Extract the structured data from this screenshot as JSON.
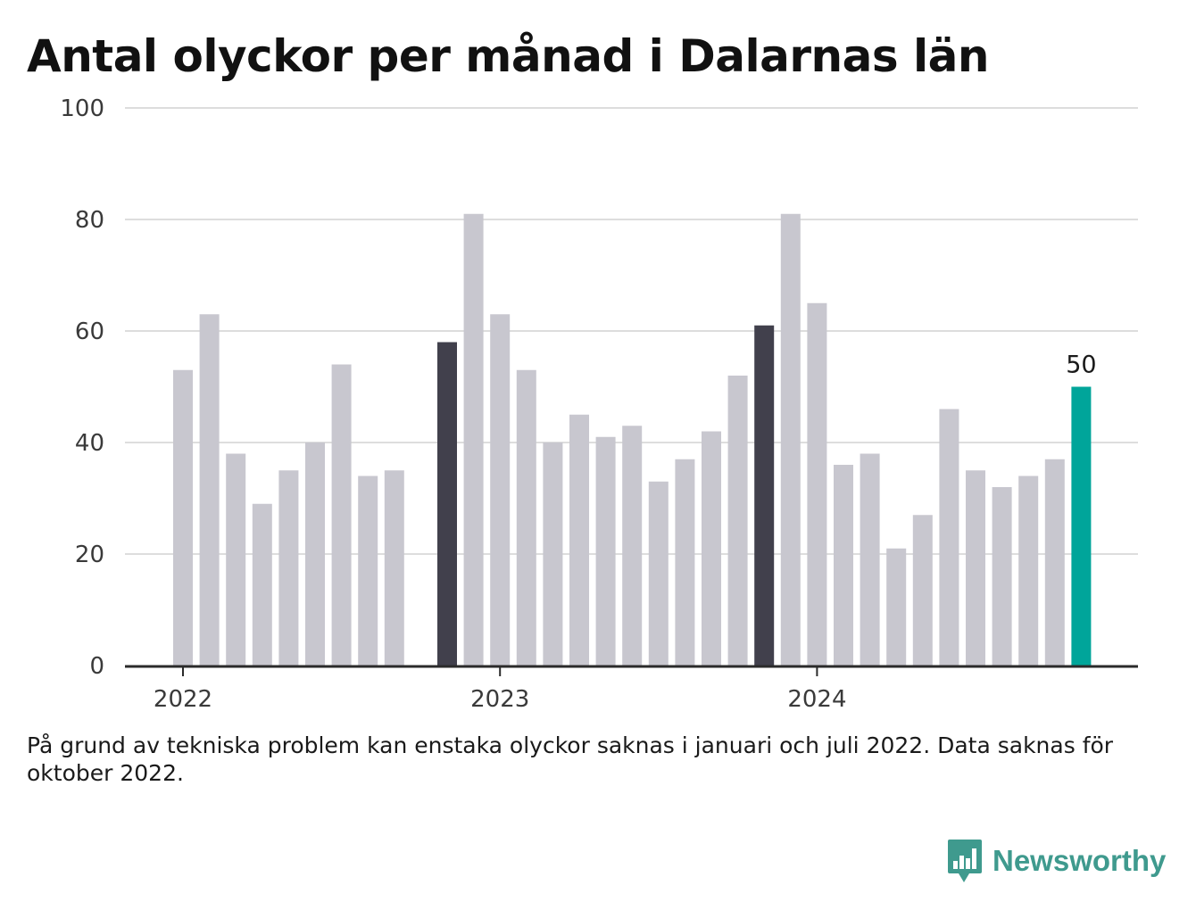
{
  "chart_data": {
    "type": "bar",
    "title": "Antal olyckor per månad i Dalarnas län",
    "x": [
      "2022-01",
      "2022-02",
      "2022-03",
      "2022-04",
      "2022-05",
      "2022-06",
      "2022-07",
      "2022-08",
      "2022-09",
      "2022-10",
      "2022-11",
      "2022-12",
      "2023-01",
      "2023-02",
      "2023-03",
      "2023-04",
      "2023-05",
      "2023-06",
      "2023-07",
      "2023-08",
      "2023-09",
      "2023-10",
      "2023-11",
      "2023-12",
      "2024-01",
      "2024-02",
      "2024-03",
      "2024-04",
      "2024-05",
      "2024-06",
      "2024-07",
      "2024-08",
      "2024-09",
      "2024-10",
      "2024-11"
    ],
    "values": [
      53,
      63,
      38,
      29,
      35,
      40,
      54,
      34,
      35,
      null,
      58,
      81,
      63,
      53,
      40,
      45,
      41,
      43,
      33,
      37,
      42,
      52,
      61,
      81,
      65,
      36,
      38,
      21,
      27,
      46,
      35,
      32,
      34,
      37,
      50
    ],
    "x_ticks": [
      {
        "label": "2022",
        "x": "2022-01"
      },
      {
        "label": "2023",
        "x": "2023-01"
      },
      {
        "label": "2024",
        "x": "2024-01"
      }
    ],
    "y_ticks": [
      0,
      20,
      40,
      60,
      80,
      100
    ],
    "ylim": [
      0,
      100
    ],
    "xlabel": "",
    "ylabel": "",
    "grid": true,
    "highlight": {
      "2022-11": "dark",
      "2023-11": "dark",
      "2024-11": "latest"
    },
    "annotations": [
      {
        "x": "2024-11",
        "text": "50"
      }
    ],
    "colors": {
      "default": "#c8c7cf",
      "dark": "#41404c",
      "latest": "#00a59a",
      "grid": "#dddddd",
      "axis": "#2b2b2b",
      "tick_text": "#3a3a3a"
    }
  },
  "footnote": "På grund av tekniska problem kan enstaka olyckor saknas i januari och juli 2022. Data saknas för oktober 2022.",
  "brand": {
    "name": "Newsworthy",
    "icon": "bar-chart-speech-bubble-icon",
    "color": "#3f9a8e"
  }
}
